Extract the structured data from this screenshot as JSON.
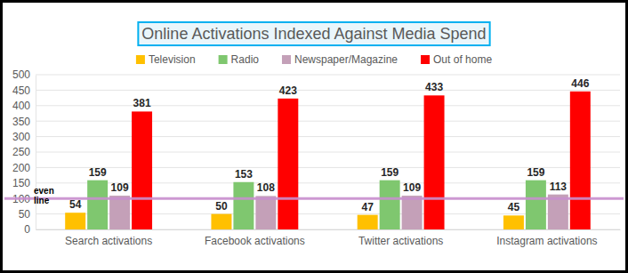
{
  "chart_data": {
    "type": "bar",
    "title": "Online Activations Indexed Against Media Spend",
    "categories": [
      "Search activations",
      "Facebook activations",
      "Twitter activations",
      "Instagram activations"
    ],
    "series": [
      {
        "name": "Television",
        "color": "#ffc000",
        "values": [
          54,
          50,
          47,
          45
        ]
      },
      {
        "name": "Radio",
        "color": "#7fc76f",
        "values": [
          159,
          153,
          159,
          159
        ]
      },
      {
        "name": "Newspaper/Magazine",
        "color": "#c4a0b8",
        "values": [
          109,
          108,
          109,
          113
        ]
      },
      {
        "name": "Out of home",
        "color": "#ff0000",
        "values": [
          381,
          423,
          433,
          446
        ]
      }
    ],
    "ylim": [
      0,
      500
    ],
    "yticks": [
      0,
      50,
      100,
      150,
      200,
      250,
      300,
      350,
      400,
      450,
      500
    ],
    "grid": true,
    "legend": "top",
    "data_labels": true,
    "annotations": [
      {
        "text": "even line",
        "y": 100
      }
    ]
  }
}
